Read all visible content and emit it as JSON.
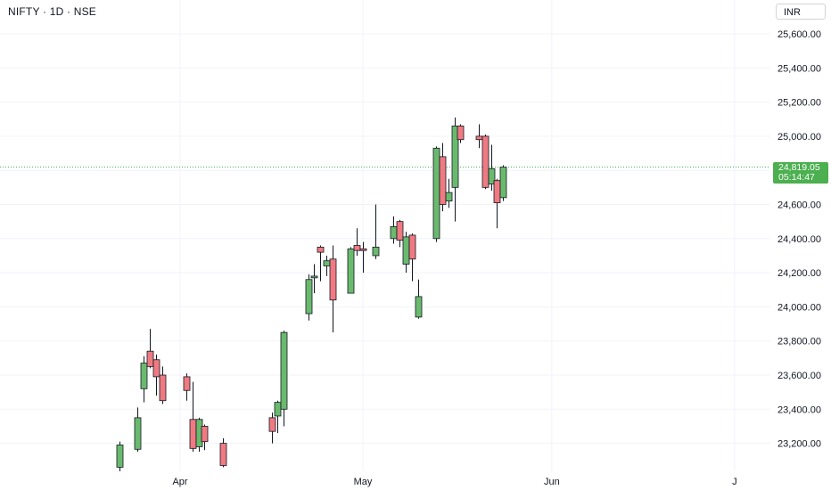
{
  "header": {
    "symbol": "NIFTY · 1D · NSE"
  },
  "currency": "INR",
  "last_price": {
    "value": "24,819.05",
    "countdown": "05:14:47",
    "color": "#4caf50"
  },
  "colors": {
    "up": "#6aba6e",
    "down": "#ef7a82",
    "border": "#131722",
    "grid": "#f0f3fa",
    "last_line": "#4caf50"
  },
  "chart_data": {
    "type": "candlestick",
    "y_ticks": [
      "25,600.00",
      "25,400.00",
      "25,200.00",
      "25,000.00",
      "24,800.00",
      "24,600.00",
      "24,400.00",
      "24,200.00",
      "24,000.00",
      "23,800.00",
      "23,600.00",
      "23,400.00",
      "23,200.00"
    ],
    "x_ticks": [
      "Apr",
      "May",
      "Jun",
      "J"
    ],
    "ylim": [
      23050,
      25750
    ],
    "last_price": 24819.05,
    "candles": [
      {
        "date": "2025-03-21",
        "o": 23060,
        "h": 23210,
        "l": 23020,
        "c": 23190
      },
      {
        "date": "2025-03-24",
        "o": 23165,
        "h": 23410,
        "l": 23150,
        "c": 23350
      },
      {
        "date": "2025-03-25",
        "o": 23520,
        "h": 23710,
        "l": 23440,
        "c": 23670
      },
      {
        "date": "2025-03-26",
        "o": 23740,
        "h": 23870,
        "l": 23640,
        "c": 23650
      },
      {
        "date": "2025-03-27",
        "o": 23690,
        "h": 23720,
        "l": 23480,
        "c": 23590
      },
      {
        "date": "2025-03-28",
        "o": 23600,
        "h": 23650,
        "l": 23430,
        "c": 23450
      },
      {
        "date": "2025-04-01",
        "o": 23590,
        "h": 23610,
        "l": 23450,
        "c": 23510
      },
      {
        "date": "2025-04-02",
        "o": 23340,
        "h": 23560,
        "l": 23150,
        "c": 23170
      },
      {
        "date": "2025-04-03",
        "o": 23180,
        "h": 23350,
        "l": 23150,
        "c": 23340
      },
      {
        "date": "2025-04-04",
        "o": 23300,
        "h": 23310,
        "l": 23160,
        "c": 23210
      },
      {
        "date": "2025-04-07",
        "o": 23200,
        "h": 23230,
        "l": 23060,
        "c": 23070
      },
      {
        "date": "2025-04-15",
        "o": 23350,
        "h": 23380,
        "l": 23200,
        "c": 23270
      },
      {
        "date": "2025-04-16",
        "o": 23360,
        "h": 23450,
        "l": 23260,
        "c": 23440
      },
      {
        "date": "2025-04-17",
        "o": 23400,
        "h": 23860,
        "l": 23300,
        "c": 23850
      },
      {
        "date": "2025-04-21",
        "o": 23960,
        "h": 24190,
        "l": 23920,
        "c": 24160
      },
      {
        "date": "2025-04-22",
        "o": 24170,
        "h": 24250,
        "l": 24080,
        "c": 24180
      },
      {
        "date": "2025-04-23",
        "o": 24350,
        "h": 24360,
        "l": 24150,
        "c": 24320
      },
      {
        "date": "2025-04-24",
        "o": 24240,
        "h": 24300,
        "l": 24180,
        "c": 24270
      },
      {
        "date": "2025-04-25",
        "o": 24280,
        "h": 24360,
        "l": 23850,
        "c": 24040
      },
      {
        "date": "2025-04-28",
        "o": 24080,
        "h": 24350,
        "l": 24080,
        "c": 24340
      },
      {
        "date": "2025-04-29",
        "o": 24360,
        "h": 24460,
        "l": 24300,
        "c": 24330
      },
      {
        "date": "2025-04-30",
        "o": 24340,
        "h": 24380,
        "l": 24200,
        "c": 24330
      },
      {
        "date": "2025-05-02",
        "o": 24300,
        "h": 24600,
        "l": 24280,
        "c": 24350
      },
      {
        "date": "2025-05-05",
        "o": 24400,
        "h": 24530,
        "l": 24370,
        "c": 24470
      },
      {
        "date": "2025-05-06",
        "o": 24500,
        "h": 24510,
        "l": 24350,
        "c": 24390
      },
      {
        "date": "2025-05-07",
        "o": 24250,
        "h": 24440,
        "l": 24200,
        "c": 24410
      },
      {
        "date": "2025-05-08",
        "o": 24420,
        "h": 24430,
        "l": 24150,
        "c": 24280
      },
      {
        "date": "2025-05-09",
        "o": 23940,
        "h": 24160,
        "l": 23930,
        "c": 24060
      },
      {
        "date": "2025-05-12",
        "o": 24400,
        "h": 24940,
        "l": 24380,
        "c": 24930
      },
      {
        "date": "2025-05-13",
        "o": 24880,
        "h": 24960,
        "l": 24560,
        "c": 24600
      },
      {
        "date": "2025-05-14",
        "o": 24620,
        "h": 24750,
        "l": 24580,
        "c": 24670
      },
      {
        "date": "2025-05-15",
        "o": 24700,
        "h": 25110,
        "l": 24500,
        "c": 25060
      },
      {
        "date": "2025-05-16",
        "o": 25060,
        "h": 25070,
        "l": 24960,
        "c": 24980
      },
      {
        "date": "2025-05-19",
        "o": 25000,
        "h": 25070,
        "l": 24930,
        "c": 24980
      },
      {
        "date": "2025-05-20",
        "o": 25000,
        "h": 25010,
        "l": 24690,
        "c": 24700
      },
      {
        "date": "2025-05-21",
        "o": 24720,
        "h": 24950,
        "l": 24680,
        "c": 24810
      },
      {
        "date": "2025-05-22",
        "o": 24740,
        "h": 24750,
        "l": 24460,
        "c": 24610
      },
      {
        "date": "2025-05-23",
        "o": 24640,
        "h": 24830,
        "l": 24620,
        "c": 24819
      }
    ]
  }
}
